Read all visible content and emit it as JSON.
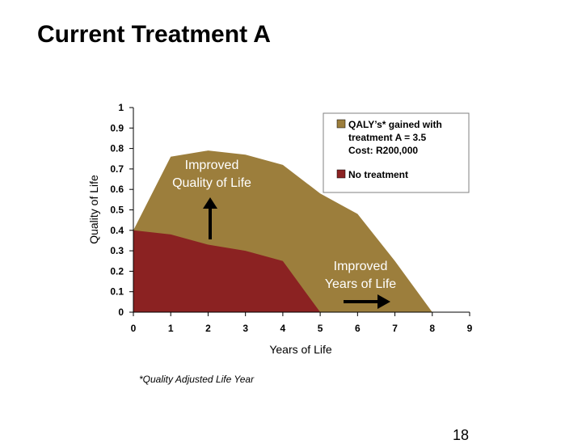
{
  "title": "Current Treatment A",
  "footnote": "*Quality Adjusted Life Year",
  "page_number": "18",
  "colors": {
    "qaly": "#9C7E3C",
    "no_treatment": "#8B2222",
    "axis": "#000000"
  },
  "chart_data": {
    "type": "area",
    "xlabel": "Years of Life",
    "ylabel": "Quality of Life",
    "xlim": [
      0,
      9
    ],
    "ylim": [
      0,
      1
    ],
    "x_ticks": [
      "0",
      "1",
      "2",
      "3",
      "4",
      "5",
      "6",
      "7",
      "8",
      "9"
    ],
    "y_ticks": [
      "0",
      "0.1",
      "0.2",
      "0.3",
      "0.4",
      "0.5",
      "0.6",
      "0.7",
      "0.8",
      "0.9",
      "1"
    ],
    "legend_placement": "top-right",
    "series": [
      {
        "name": "QALY’s* gained with treatment A = 3.5 Cost: R200,000",
        "legend_lines": [
          "QALY’s* gained with",
          "treatment A = 3.5",
          "Cost: R200,000"
        ],
        "x": [
          0,
          1,
          2,
          3,
          4,
          5,
          6,
          7,
          8
        ],
        "values": [
          0.4,
          0.76,
          0.79,
          0.77,
          0.72,
          0.58,
          0.48,
          0.25,
          0.0
        ]
      },
      {
        "name": "No treatment",
        "legend_lines": [
          "No treatment"
        ],
        "x": [
          0,
          1,
          2,
          3,
          4,
          5
        ],
        "values": [
          0.4,
          0.38,
          0.33,
          0.3,
          0.25,
          0.0
        ]
      }
    ],
    "annotations": [
      {
        "lines": [
          "Improved",
          "Quality of Life"
        ],
        "arrow": "up"
      },
      {
        "lines": [
          "Improved",
          "Years of Life"
        ],
        "arrow": "right"
      }
    ]
  }
}
